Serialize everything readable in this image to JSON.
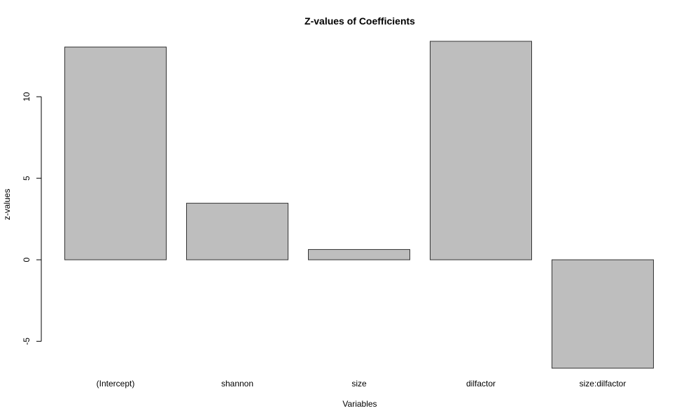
{
  "chart_data": {
    "type": "bar",
    "title": "Z-values of Coefficients",
    "xlabel": "Variables",
    "ylabel": "z-values",
    "categories": [
      "(Intercept)",
      "shannon",
      "size",
      "dilfactor",
      "size:dilfactor"
    ],
    "values": [
      13.05,
      3.47,
      0.63,
      13.4,
      -6.65
    ],
    "ylim": [
      -6.65,
      13.4
    ],
    "yticks": [
      -5,
      0,
      5,
      10
    ],
    "grid": false,
    "legend": "none",
    "bar_color": "#bebebe",
    "bar_border_color": "#333333"
  }
}
